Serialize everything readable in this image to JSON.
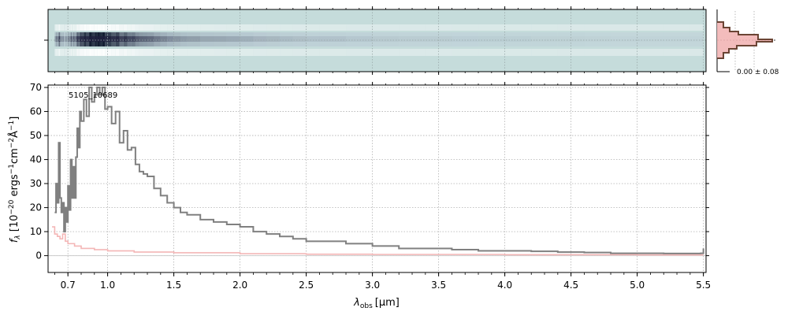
{
  "chart_data": {
    "type": "line",
    "object_label": "5105_10689",
    "xlabel_main": "λ",
    "xlabel_sub": "obs",
    "xlabel_unit": "[μm]",
    "ylabel_main": "f",
    "ylabel_sub": "λ",
    "ylabel_rest": " [10",
    "ylabel_e1": "−20",
    "ylabel_t2": " ergs",
    "ylabel_e2": "−1",
    "ylabel_t3": "cm",
    "ylabel_e3": "−2",
    "ylabel_t4": "Å",
    "ylabel_e4": "−1",
    "ylabel_t5": "]",
    "xlim": [
      0.55,
      5.52
    ],
    "ylim": [
      -7,
      71
    ],
    "x_ticks": [
      {
        "v": 0.7,
        "label": "0.7"
      },
      {
        "v": 1.0,
        "label": "1.0"
      },
      {
        "v": 1.5,
        "label": "1.5"
      },
      {
        "v": 2.0,
        "label": "2.0"
      },
      {
        "v": 2.5,
        "label": "2.5"
      },
      {
        "v": 3.0,
        "label": "3.0"
      },
      {
        "v": 3.5,
        "label": "3.5"
      },
      {
        "v": 4.0,
        "label": "4.0"
      },
      {
        "v": 4.5,
        "label": "4.5"
      },
      {
        "v": 5.0,
        "label": "5.0"
      },
      {
        "v": 5.5,
        "label": "5.5"
      }
    ],
    "y_ticks": [
      0,
      10,
      20,
      30,
      40,
      50,
      60,
      70
    ],
    "inset_label": "0.00 ± 0.08",
    "series": [
      {
        "color": "#808080",
        "x": [
          0.6,
          0.61,
          0.62,
          0.63,
          0.64,
          0.65,
          0.66,
          0.67,
          0.68,
          0.69,
          0.7,
          0.71,
          0.72,
          0.73,
          0.74,
          0.75,
          0.76,
          0.77,
          0.78,
          0.79,
          0.8,
          0.82,
          0.84,
          0.86,
          0.88,
          0.9,
          0.92,
          0.94,
          0.96,
          0.98,
          1.0,
          1.03,
          1.06,
          1.09,
          1.12,
          1.15,
          1.18,
          1.21,
          1.24,
          1.27,
          1.3,
          1.35,
          1.4,
          1.45,
          1.5,
          1.55,
          1.6,
          1.7,
          1.8,
          1.9,
          2.0,
          2.1,
          2.2,
          2.3,
          2.4,
          2.5,
          2.6,
          2.8,
          3.0,
          3.2,
          3.4,
          3.6,
          3.8,
          4.0,
          4.2,
          4.4,
          4.6,
          4.8,
          5.0,
          5.2,
          5.4,
          5.48,
          5.5
        ],
        "values": [
          18,
          30,
          22,
          47,
          24,
          18,
          22,
          10,
          20,
          14,
          29,
          19,
          40,
          24,
          37,
          24,
          41,
          53,
          45,
          60,
          56,
          65,
          58,
          70,
          64,
          67,
          70,
          67,
          70,
          61,
          62,
          55,
          60,
          47,
          52,
          44,
          45,
          38,
          35,
          34,
          33,
          28,
          25,
          22,
          20,
          18,
          17,
          15,
          14,
          13,
          12,
          10,
          9,
          8,
          7,
          6,
          6,
          5,
          4,
          3,
          3,
          2.5,
          2,
          2,
          1.8,
          1.5,
          1.3,
          1,
          1,
          0.9,
          0.9,
          1,
          3
        ]
      },
      {
        "color": "#f4b6b6",
        "x": [
          0.58,
          0.6,
          0.62,
          0.64,
          0.66,
          0.68,
          0.7,
          0.75,
          0.8,
          0.9,
          1.0,
          1.2,
          1.5,
          2.0,
          2.5,
          3.0,
          4.0,
          5.0,
          5.5
        ],
        "values": [
          12,
          9,
          8,
          7,
          9,
          6,
          5,
          4,
          3,
          2.5,
          2,
          1.5,
          1.2,
          0.8,
          0.6,
          0.5,
          0.4,
          0.3,
          0.3
        ]
      }
    ],
    "grid": true
  }
}
